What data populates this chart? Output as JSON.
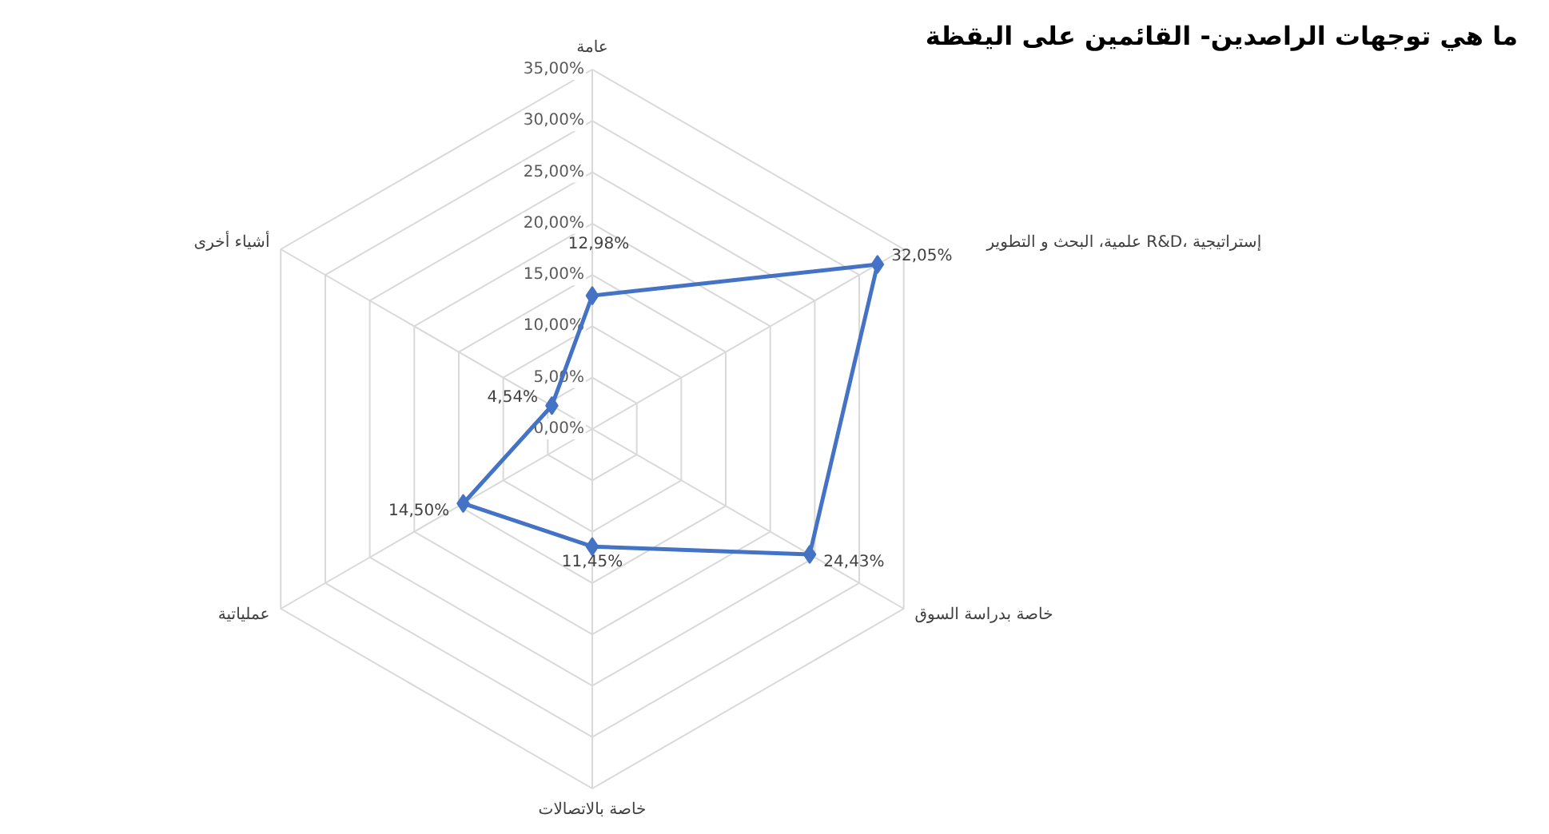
{
  "chart_data": {
    "type": "radar",
    "title": "ما هي توجهات الراصدين- القائمين على اليقظة",
    "categories": [
      "عامة",
      "علمية، البحث و التطوير R&D، إستراتيجية",
      "خاصة بدراسة السوق",
      "خاصة بالاتصالات",
      "عملياتية",
      "أشياء أخرى"
    ],
    "series": [
      {
        "color": "#4472c4",
        "values": [
          12.98,
          32.05,
          24.43,
          11.45,
          14.5,
          4.54
        ],
        "value_labels": [
          "12,98%",
          "32,05%",
          "24,43%",
          "11,45%",
          "14,50%",
          "4,54%"
        ]
      }
    ],
    "ylim": [
      0,
      35
    ],
    "yticks": [
      {
        "value": 0,
        "label": "0,00%"
      },
      {
        "value": 5,
        "label": "5,00%"
      },
      {
        "value": 10,
        "label": "10,00%"
      },
      {
        "value": 15,
        "label": "15,00%"
      },
      {
        "value": 20,
        "label": "20,00%"
      },
      {
        "value": 25,
        "label": "25,00%"
      },
      {
        "value": 30,
        "label": "30,00%"
      },
      {
        "value": 35,
        "label": "35,00%"
      }
    ],
    "grid": true,
    "marker": "diamond",
    "line_style": "solid"
  }
}
